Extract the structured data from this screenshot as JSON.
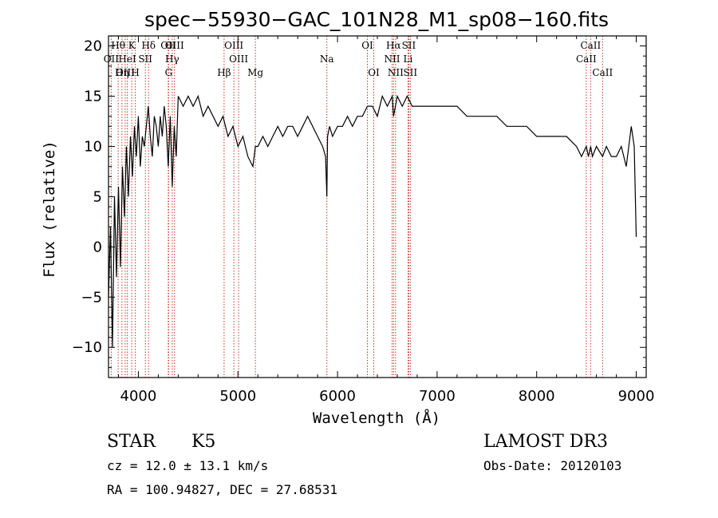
{
  "chart_data": {
    "type": "line",
    "title": "spec−55930−GAC_101N28_M1_sp08−160.fits",
    "xlabel": "Wavelength (Å)",
    "ylabel": "Flux (relative)",
    "xlim": [
      3700,
      9100
    ],
    "ylim": [
      -13,
      21
    ],
    "xticks": [
      4000,
      5000,
      6000,
      7000,
      8000,
      9000
    ],
    "xtick_labels": [
      "4000",
      "5000",
      "6000",
      "7000",
      "8000",
      "9000"
    ],
    "yticks": [
      -10,
      -5,
      0,
      5,
      10,
      15,
      20
    ],
    "ytick_labels": [
      "−10",
      "−5",
      "0",
      "5",
      "10",
      "15",
      "20"
    ],
    "grid": false,
    "series": [
      {
        "x": [
          3700,
          3720,
          3740,
          3760,
          3780,
          3800,
          3820,
          3840,
          3860,
          3880,
          3900,
          3920,
          3940,
          3960,
          3980,
          4000,
          4020,
          4040,
          4060,
          4080,
          4100,
          4120,
          4140,
          4160,
          4180,
          4200,
          4220,
          4240,
          4260,
          4280,
          4300,
          4320,
          4340,
          4360,
          4380,
          4400,
          4450,
          4500,
          4550,
          4600,
          4650,
          4700,
          4750,
          4800,
          4850,
          4900,
          4950,
          5000,
          5050,
          5100,
          5150,
          5175,
          5200,
          5250,
          5300,
          5350,
          5400,
          5450,
          5500,
          5550,
          5600,
          5650,
          5700,
          5750,
          5800,
          5850,
          5880,
          5893,
          5900,
          5920,
          5950,
          6000,
          6050,
          6100,
          6150,
          6200,
          6250,
          6300,
          6350,
          6400,
          6450,
          6500,
          6550,
          6563,
          6600,
          6650,
          6700,
          6750,
          6800,
          6900,
          7000,
          7100,
          7200,
          7300,
          7400,
          7500,
          7600,
          7700,
          7800,
          7900,
          8000,
          8100,
          8200,
          8300,
          8400,
          8450,
          8498,
          8520,
          8542,
          8560,
          8600,
          8662,
          8700,
          8750,
          8800,
          8850,
          8900,
          8950,
          8980,
          9000
        ],
        "y": [
          -5,
          2,
          -10,
          5,
          -3,
          6,
          -2,
          8,
          3,
          10,
          5,
          11,
          7,
          12,
          9,
          13,
          8,
          11,
          10,
          12,
          14,
          11,
          9,
          13,
          12,
          10,
          13,
          11,
          14,
          12,
          8,
          13,
          6,
          12,
          9,
          15,
          14,
          15,
          14,
          15,
          13,
          14,
          13,
          12,
          13,
          11,
          12,
          10,
          11,
          9,
          8,
          10,
          10,
          11,
          10,
          11,
          12,
          11,
          12,
          12,
          11,
          12,
          13,
          12,
          11,
          10,
          9,
          5,
          11,
          12,
          11,
          12,
          12,
          13,
          12,
          13,
          13,
          14,
          14,
          13,
          15,
          14,
          15,
          13,
          15,
          14,
          15,
          14,
          14,
          14,
          14,
          14,
          14,
          13,
          13,
          13,
          13,
          12,
          12,
          12,
          11,
          11,
          11,
          11,
          10,
          9,
          10,
          9,
          10,
          9,
          10,
          9,
          10,
          9,
          9,
          10,
          8,
          12,
          10,
          1
        ]
      }
    ],
    "line_markers": [
      {
        "label": "Hθ",
        "x": 3797,
        "row": 0
      },
      {
        "label": "OII",
        "x": 3727,
        "row": 1
      },
      {
        "label": "OIII",
        "x": 3868,
        "row": 2
      },
      {
        "label": "Hη",
        "x": 3835,
        "row": 2
      },
      {
        "label": "K",
        "x": 3934,
        "row": 0
      },
      {
        "label": "HeI",
        "x": 3889,
        "row": 1
      },
      {
        "label": "SII",
        "x": 4070,
        "row": 1
      },
      {
        "label": "H",
        "x": 3969,
        "row": 2
      },
      {
        "label": "Hδ",
        "x": 4102,
        "row": 0
      },
      {
        "label": "OII",
        "x": 4300,
        "row": 0
      },
      {
        "label": "Hγ",
        "x": 4340,
        "row": 1
      },
      {
        "label": "G",
        "x": 4304,
        "row": 2
      },
      {
        "label": "OIII",
        "x": 4363,
        "row": 0
      },
      {
        "label": "OIII",
        "x": 4959,
        "row": 0
      },
      {
        "label": "OIII",
        "x": 5007,
        "row": 1
      },
      {
        "label": "Hβ",
        "x": 4861,
        "row": 2
      },
      {
        "label": "Mg",
        "x": 5175,
        "row": 2
      },
      {
        "label": "Na",
        "x": 5893,
        "row": 1
      },
      {
        "label": "OI",
        "x": 6300,
        "row": 0
      },
      {
        "label": "OI",
        "x": 6364,
        "row": 2
      },
      {
        "label": "Hα",
        "x": 6563,
        "row": 0
      },
      {
        "label": "SII",
        "x": 6716,
        "row": 0
      },
      {
        "label": "NII",
        "x": 6548,
        "row": 1
      },
      {
        "label": "Li",
        "x": 6708,
        "row": 1
      },
      {
        "label": "NII",
        "x": 6583,
        "row": 2
      },
      {
        "label": "SII",
        "x": 6731,
        "row": 2
      },
      {
        "label": "CaII",
        "x": 8542,
        "row": 0
      },
      {
        "label": "CaII",
        "x": 8498,
        "row": 1
      },
      {
        "label": "CaII",
        "x": 8662,
        "row": 2
      }
    ],
    "annotations": {
      "object_class": "STAR",
      "subclass": "K5",
      "survey": "LAMOST DR3",
      "redshift": "cz = 12.0 ± 13.1 km/s",
      "obs_date": "Obs-Date: 20120103",
      "coords": "RA = 100.94827, DEC =  27.68531"
    },
    "colors": {
      "spectrum": "#000000",
      "marker_line": "#c0392b",
      "text": "#000000"
    }
  }
}
